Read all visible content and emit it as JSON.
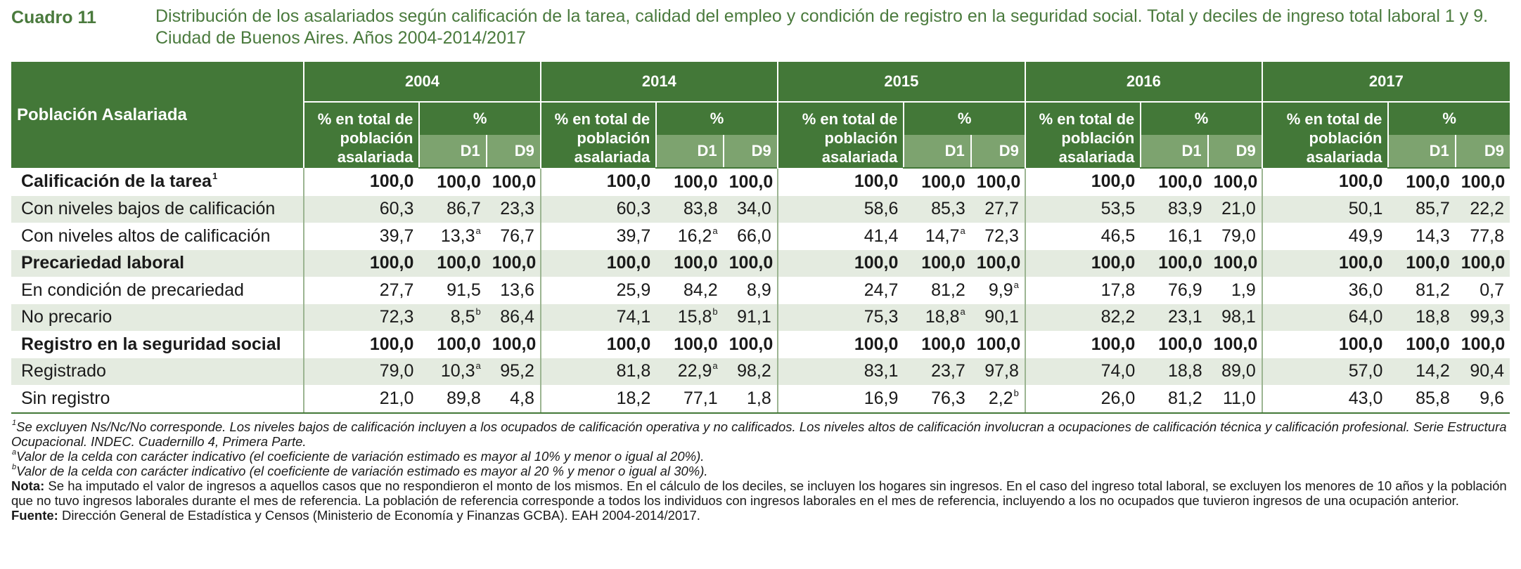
{
  "header": {
    "label": "Cuadro 11",
    "title": "Distribución de los asalariados según calificación de la tarea, calidad del empleo y condición de registro en la seguridad social. Total y deciles de ingreso total laboral 1 y 9. Ciudad de Buenos Aires. Años 2004-2014/2017"
  },
  "table": {
    "row_header": "Población Asalariada",
    "years": [
      "2004",
      "2014",
      "2015",
      "2016",
      "2017"
    ],
    "pct_total_label": "% en total de población asalariada",
    "pct_label": "%",
    "decile_labels": [
      "D1",
      "D9"
    ],
    "rows": [
      {
        "label": "Calificación de la tarea",
        "label_sup": "1",
        "bold": true,
        "shade": false,
        "cells": [
          [
            "100,0",
            ""
          ],
          [
            "100,0",
            ""
          ],
          [
            "100,0",
            ""
          ],
          [
            "100,0",
            ""
          ],
          [
            "100,0",
            ""
          ],
          [
            "100,0",
            ""
          ],
          [
            "100,0",
            ""
          ],
          [
            "100,0",
            ""
          ],
          [
            "100,0",
            ""
          ],
          [
            "100,0",
            ""
          ],
          [
            "100,0",
            ""
          ],
          [
            "100,0",
            ""
          ],
          [
            "100,0",
            ""
          ],
          [
            "100,0",
            ""
          ],
          [
            "100,0",
            ""
          ]
        ]
      },
      {
        "label": "Con niveles bajos de calificación",
        "label_sup": "",
        "bold": false,
        "shade": true,
        "cells": [
          [
            "60,3",
            ""
          ],
          [
            "86,7",
            ""
          ],
          [
            "23,3",
            ""
          ],
          [
            "60,3",
            ""
          ],
          [
            "83,8",
            ""
          ],
          [
            "34,0",
            ""
          ],
          [
            "58,6",
            ""
          ],
          [
            "85,3",
            ""
          ],
          [
            "27,7",
            ""
          ],
          [
            "53,5",
            ""
          ],
          [
            "83,9",
            ""
          ],
          [
            "21,0",
            ""
          ],
          [
            "50,1",
            ""
          ],
          [
            "85,7",
            ""
          ],
          [
            "22,2",
            ""
          ]
        ]
      },
      {
        "label": "Con niveles altos de calificación",
        "label_sup": "",
        "bold": false,
        "shade": false,
        "cells": [
          [
            "39,7",
            ""
          ],
          [
            "13,3",
            "a"
          ],
          [
            "76,7",
            ""
          ],
          [
            "39,7",
            ""
          ],
          [
            "16,2",
            "a"
          ],
          [
            "66,0",
            ""
          ],
          [
            "41,4",
            ""
          ],
          [
            "14,7",
            "a"
          ],
          [
            "72,3",
            ""
          ],
          [
            "46,5",
            ""
          ],
          [
            "16,1",
            ""
          ],
          [
            "79,0",
            ""
          ],
          [
            "49,9",
            ""
          ],
          [
            "14,3",
            ""
          ],
          [
            "77,8",
            ""
          ]
        ]
      },
      {
        "label": "Precariedad laboral",
        "label_sup": "",
        "bold": true,
        "shade": true,
        "cells": [
          [
            "100,0",
            ""
          ],
          [
            "100,0",
            ""
          ],
          [
            "100,0",
            ""
          ],
          [
            "100,0",
            ""
          ],
          [
            "100,0",
            ""
          ],
          [
            "100,0",
            ""
          ],
          [
            "100,0",
            ""
          ],
          [
            "100,0",
            ""
          ],
          [
            "100,0",
            ""
          ],
          [
            "100,0",
            ""
          ],
          [
            "100,0",
            ""
          ],
          [
            "100,0",
            ""
          ],
          [
            "100,0",
            ""
          ],
          [
            "100,0",
            ""
          ],
          [
            "100,0",
            ""
          ]
        ]
      },
      {
        "label": "En condición de precariedad",
        "label_sup": "",
        "bold": false,
        "shade": false,
        "cells": [
          [
            "27,7",
            ""
          ],
          [
            "91,5",
            ""
          ],
          [
            "13,6",
            ""
          ],
          [
            "25,9",
            ""
          ],
          [
            "84,2",
            ""
          ],
          [
            "8,9",
            ""
          ],
          [
            "24,7",
            ""
          ],
          [
            "81,2",
            ""
          ],
          [
            "9,9",
            "a"
          ],
          [
            "17,8",
            ""
          ],
          [
            "76,9",
            ""
          ],
          [
            "1,9",
            ""
          ],
          [
            "36,0",
            ""
          ],
          [
            "81,2",
            ""
          ],
          [
            "0,7",
            ""
          ]
        ]
      },
      {
        "label": "No precario",
        "label_sup": "",
        "bold": false,
        "shade": true,
        "cells": [
          [
            "72,3",
            ""
          ],
          [
            "8,5",
            "b"
          ],
          [
            "86,4",
            ""
          ],
          [
            "74,1",
            ""
          ],
          [
            "15,8",
            "b"
          ],
          [
            "91,1",
            ""
          ],
          [
            "75,3",
            ""
          ],
          [
            "18,8",
            "a"
          ],
          [
            "90,1",
            ""
          ],
          [
            "82,2",
            ""
          ],
          [
            "23,1",
            ""
          ],
          [
            "98,1",
            ""
          ],
          [
            "64,0",
            ""
          ],
          [
            "18,8",
            ""
          ],
          [
            "99,3",
            ""
          ]
        ]
      },
      {
        "label": "Registro en la seguridad social",
        "label_sup": "",
        "bold": true,
        "shade": false,
        "cells": [
          [
            "100,0",
            ""
          ],
          [
            "100,0",
            ""
          ],
          [
            "100,0",
            ""
          ],
          [
            "100,0",
            ""
          ],
          [
            "100,0",
            ""
          ],
          [
            "100,0",
            ""
          ],
          [
            "100,0",
            ""
          ],
          [
            "100,0",
            ""
          ],
          [
            "100,0",
            ""
          ],
          [
            "100,0",
            ""
          ],
          [
            "100,0",
            ""
          ],
          [
            "100,0",
            ""
          ],
          [
            "100,0",
            ""
          ],
          [
            "100,0",
            ""
          ],
          [
            "100,0",
            ""
          ]
        ]
      },
      {
        "label": "Registrado",
        "label_sup": "",
        "bold": false,
        "shade": true,
        "cells": [
          [
            "79,0",
            ""
          ],
          [
            "10,3",
            "a"
          ],
          [
            "95,2",
            ""
          ],
          [
            "81,8",
            ""
          ],
          [
            "22,9",
            "a"
          ],
          [
            "98,2",
            ""
          ],
          [
            "83,1",
            ""
          ],
          [
            "23,7",
            ""
          ],
          [
            "97,8",
            ""
          ],
          [
            "74,0",
            ""
          ],
          [
            "18,8",
            ""
          ],
          [
            "89,0",
            ""
          ],
          [
            "57,0",
            ""
          ],
          [
            "14,2",
            ""
          ],
          [
            "90,4",
            ""
          ]
        ]
      },
      {
        "label": "Sin registro",
        "label_sup": "",
        "bold": false,
        "shade": false,
        "cells": [
          [
            "21,0",
            ""
          ],
          [
            "89,8",
            ""
          ],
          [
            "4,8",
            ""
          ],
          [
            "18,2",
            ""
          ],
          [
            "77,1",
            ""
          ],
          [
            "1,8",
            ""
          ],
          [
            "16,9",
            ""
          ],
          [
            "76,3",
            ""
          ],
          [
            "2,2",
            "b"
          ],
          [
            "26,0",
            ""
          ],
          [
            "81,2",
            ""
          ],
          [
            "11,0",
            ""
          ],
          [
            "43,0",
            ""
          ],
          [
            "85,8",
            ""
          ],
          [
            "9,6",
            ""
          ]
        ]
      }
    ]
  },
  "notes": {
    "n1_mark": "1",
    "n1": "Se excluyen Ns/Nc/No corresponde. Los niveles bajos de calificación incluyen a los ocupados de calificación operativa y no calificados. Los niveles altos de calificación involucran a ocupaciones de calificación técnica y calificación profesional. Serie Estructura Ocupacional. INDEC. Cuadernillo 4, Primera Parte.",
    "na_mark": "a",
    "na": "Valor de la celda con carácter indicativo (el coeficiente de variación estimado es mayor al 10% y menor o igual al 20%).",
    "nb_mark": "b",
    "nb": "Valor de la celda con carácter indicativo (el coeficiente de variación estimado es mayor al 20 % y menor o igual al 30%).",
    "nota_label": "Nota:",
    "nota": "Se ha imputado el valor de ingresos a aquellos casos que no respondieron el monto de los mismos. En el cálculo de los deciles, se incluyen los hogares sin ingresos. En el caso del ingreso total laboral, se excluyen los menores de 10 años y la población que no tuvo ingresos laborales durante el mes de referencia. La población de referencia corresponde a todos los individuos con ingresos laborales en el mes de referencia, incluyendo a los no ocupados que tuvieron ingresos de una ocupación anterior.",
    "fuente_label": "Fuente:",
    "fuente": "Dirección General de Estadística y Censos (Ministerio de Economía y Finanzas GCBA). EAH 2004-2014/2017."
  }
}
